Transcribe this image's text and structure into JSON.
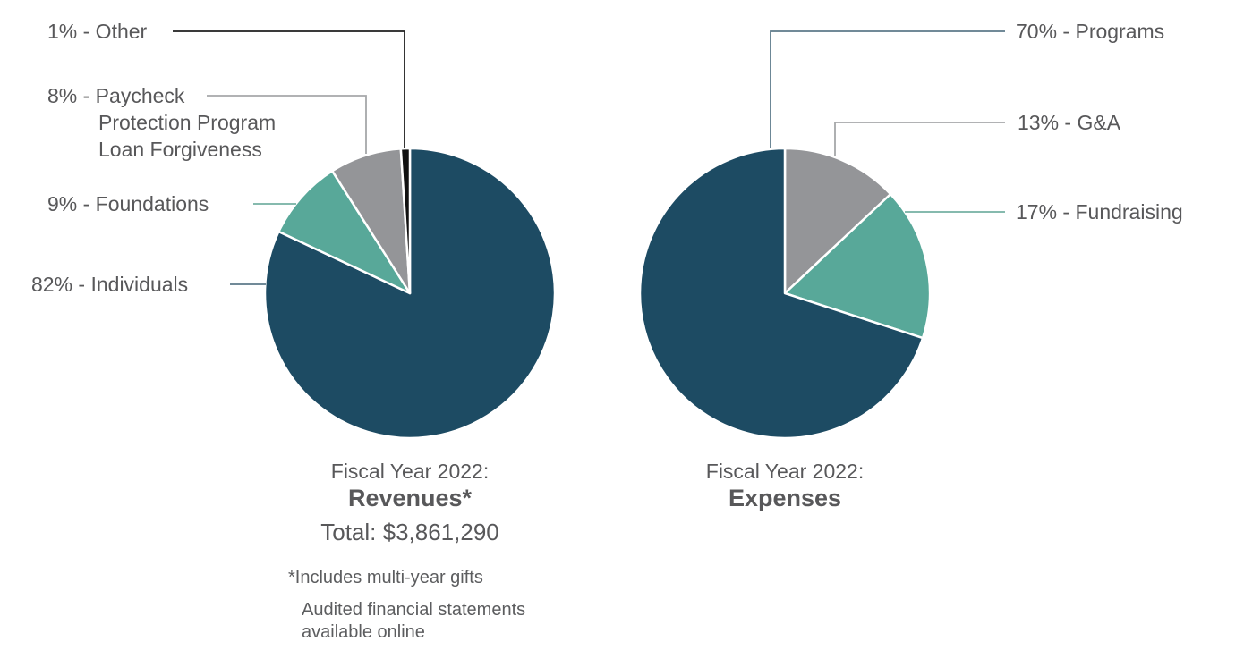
{
  "colors": {
    "dark": "#1d4b63",
    "teal": "#58a899",
    "gray": "#949598",
    "black": "#111111",
    "line_slate": "#5d7a8a",
    "line_teal": "#74b0a2",
    "line_gray": "#a6a7a9",
    "line_black": "#1f1f1f",
    "text": "#58585a"
  },
  "chart_data": [
    {
      "type": "pie",
      "id": "revenues",
      "title": "Fiscal Year 2022:",
      "subtitle": "Revenues*",
      "total_label": "Total: $3,861,290",
      "total_value": 3861290,
      "start_angle_deg": 0,
      "direction": "clockwise",
      "slices": [
        {
          "label": "Individuals",
          "pct": 82,
          "color": "dark"
        },
        {
          "label": "Foundations",
          "pct": 9,
          "color": "teal"
        },
        {
          "label": "Paycheck Protection Program Loan Forgiveness",
          "pct": 8,
          "color": "gray"
        },
        {
          "label": "Other",
          "pct": 1,
          "color": "black"
        }
      ],
      "footnotes": [
        "*Includes multi-year gifts",
        "Audited financial statements\navailable online"
      ]
    },
    {
      "type": "pie",
      "id": "expenses",
      "title": "Fiscal Year 2022:",
      "subtitle": "Expenses",
      "start_angle_deg": 0,
      "direction": "clockwise",
      "slices": [
        {
          "label": "G&A",
          "pct": 13,
          "color": "gray"
        },
        {
          "label": "Fundraising",
          "pct": 17,
          "color": "teal"
        },
        {
          "label": "Programs",
          "pct": 70,
          "color": "dark"
        }
      ]
    }
  ],
  "callouts": {
    "other": "1% - Other",
    "ppp": "8% - Paycheck\nProtection Program\nLoan Forgiveness",
    "foundations": "9% - Foundations",
    "individuals": "82% - Individuals",
    "programs": "70% - Programs",
    "ga": "13% - G&A",
    "fundraising": "17% - Fundraising"
  }
}
